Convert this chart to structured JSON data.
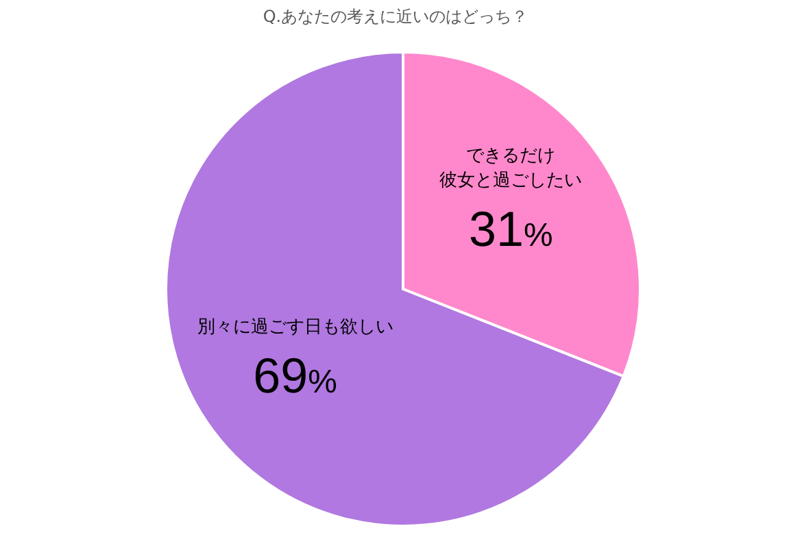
{
  "chart_data": {
    "type": "pie",
    "title": "Q.あなたの考えに近いのはどっち？",
    "categories": [
      "できるだけ彼女と過ごしたい",
      "別々に過ごす日も欲しい"
    ],
    "values": [
      31,
      69
    ],
    "colors": [
      "#ff88cc",
      "#b078e0"
    ],
    "value_labels": [
      "31%",
      "69%"
    ]
  }
}
